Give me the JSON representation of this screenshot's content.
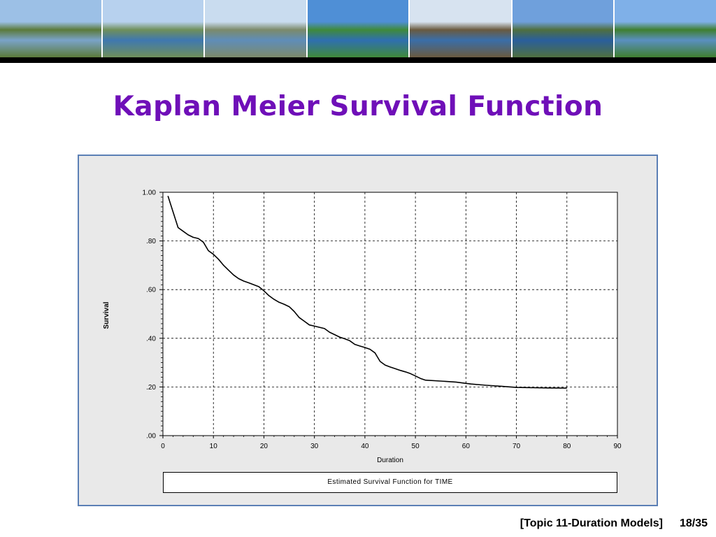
{
  "slide": {
    "title": "Kaplan Meier Survival Function",
    "footer_topic": "[Topic 11-Duration Models]",
    "footer_page": "18/35"
  },
  "banner": {
    "photos": [
      {
        "name": "hill-village-photo",
        "sky": "#9cc0e6",
        "land": "#5b7a3a",
        "water": "#7aa3c8"
      },
      {
        "name": "lake-bay-photo",
        "sky": "#b7d1ee",
        "land": "#6f8f5a",
        "water": "#3f78b0"
      },
      {
        "name": "lakeside-promenade-photo",
        "sky": "#c9dcef",
        "land": "#7c8a6a",
        "water": "#5f8db8"
      },
      {
        "name": "flower-garden-photo",
        "sky": "#4f8fd6",
        "land": "#3f8a3a",
        "water": "#2f6fb0"
      },
      {
        "name": "mountain-lake-photo",
        "sky": "#d7e3f0",
        "land": "#6a5a3f",
        "water": "#3a6ea8"
      },
      {
        "name": "lake-panorama-photo",
        "sky": "#6fa0dc",
        "land": "#4f6f3f",
        "water": "#2a5f9c"
      },
      {
        "name": "tree-promenade-photo",
        "sky": "#7fb0e8",
        "land": "#3f7f2f",
        "water": "#5a8fc0"
      }
    ]
  },
  "chart_data": {
    "type": "line",
    "xlabel": "Duration",
    "ylabel": "Survival",
    "xlim": [
      0,
      90
    ],
    "ylim": [
      0,
      1
    ],
    "grid": true,
    "x_ticks": [
      0,
      10,
      20,
      30,
      40,
      50,
      60,
      70,
      80,
      90
    ],
    "x_tick_labels": [
      "0",
      "10",
      "20",
      "30",
      "40",
      "50",
      "60",
      "70",
      "80",
      "90"
    ],
    "y_ticks": [
      0,
      0.2,
      0.4,
      0.6,
      0.8,
      1.0
    ],
    "y_tick_labels": [
      ".00",
      ".20",
      ".40",
      ".60",
      ".80",
      "1.00"
    ],
    "caption": "Estimated Survival Function for TIME",
    "series": [
      {
        "x": [
          1,
          2,
          3,
          4,
          5,
          6,
          7,
          8,
          9,
          10,
          11,
          12,
          13,
          14,
          15,
          16,
          17,
          18,
          19,
          20,
          21,
          22,
          23,
          24,
          25,
          26,
          27,
          28,
          29,
          30,
          31,
          32,
          33,
          34,
          35,
          36,
          37,
          38,
          39,
          40,
          41,
          42,
          43,
          44,
          45,
          46,
          47,
          48,
          49,
          50,
          51,
          52,
          55,
          58,
          61,
          64,
          67,
          70,
          73,
          76,
          80
        ],
        "y": [
          0.985,
          0.92,
          0.855,
          0.84,
          0.825,
          0.815,
          0.81,
          0.795,
          0.76,
          0.745,
          0.725,
          0.7,
          0.68,
          0.66,
          0.645,
          0.635,
          0.628,
          0.62,
          0.612,
          0.595,
          0.575,
          0.56,
          0.548,
          0.54,
          0.53,
          0.51,
          0.485,
          0.47,
          0.455,
          0.45,
          0.445,
          0.44,
          0.425,
          0.415,
          0.405,
          0.398,
          0.39,
          0.375,
          0.368,
          0.362,
          0.355,
          0.34,
          0.305,
          0.29,
          0.282,
          0.275,
          0.268,
          0.262,
          0.255,
          0.245,
          0.235,
          0.228,
          0.224,
          0.22,
          0.212,
          0.207,
          0.203,
          0.198,
          0.197,
          0.196,
          0.195
        ]
      }
    ]
  }
}
